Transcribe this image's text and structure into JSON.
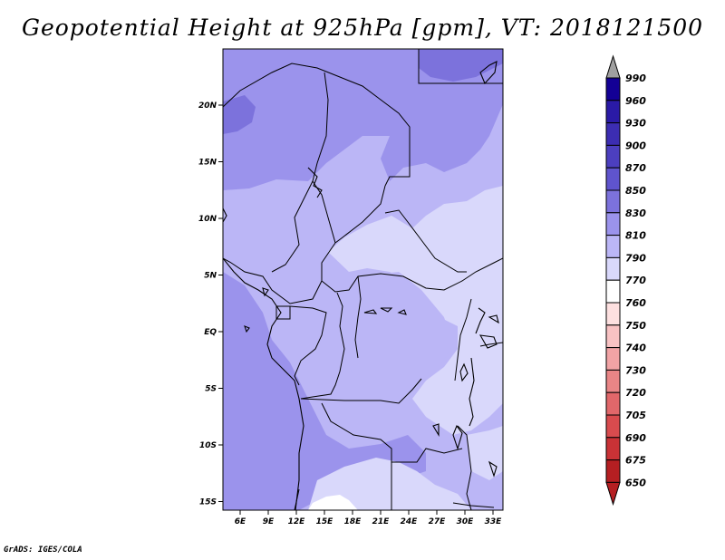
{
  "title": "Geopotential Height at 925hPa [gpm], VT: 2018121500",
  "footer": "GrADS: IGES/COLA",
  "map": {
    "type": "filled-contour-map",
    "variable": "Geopotential Height",
    "level": "925hPa",
    "units": "gpm",
    "valid_time": "2018121500",
    "lon_ticks": [
      "6E",
      "9E",
      "12E",
      "15E",
      "18E",
      "21E",
      "24E",
      "27E",
      "30E",
      "33E"
    ],
    "lat_ticks": [
      "20N",
      "15N",
      "10N",
      "5N",
      "EQ",
      "5S",
      "10S",
      "15S"
    ]
  },
  "colorbar": {
    "levels": [
      "990",
      "960",
      "930",
      "900",
      "870",
      "850",
      "830",
      "810",
      "790",
      "770",
      "760",
      "750",
      "740",
      "730",
      "720",
      "705",
      "690",
      "675",
      "650"
    ],
    "colors": [
      "#130095",
      "#2a1aa6",
      "#3c2db2",
      "#4c3fbf",
      "#5f54cd",
      "#7c72dc",
      "#9b93ec",
      "#bbb6f6",
      "#d9d8fb",
      "#ffffff",
      "#fde0e0",
      "#f8c2c3",
      "#f1a3a5",
      "#e98586",
      "#e1676a",
      "#d84b4e",
      "#c93236",
      "#b51f22",
      "#9b1114"
    ],
    "top_arrow_color": "#a0a0a0",
    "bottom_arrow_color": "#b51f22"
  },
  "field_colors": {
    "850": "#7c72dc",
    "830": "#9b93ec",
    "810": "#bbb6f6",
    "790": "#d9d8fb"
  }
}
